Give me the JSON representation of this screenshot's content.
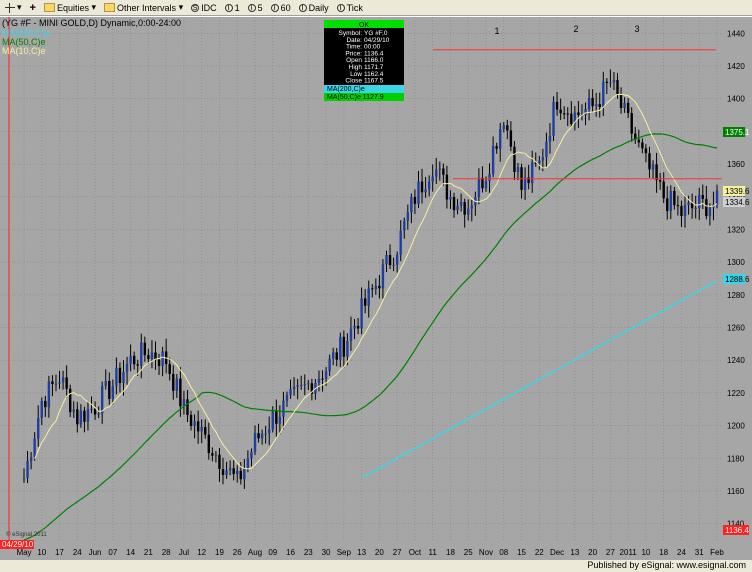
{
  "toolbar": {
    "symbol_menu": "▾",
    "equities": "Equities",
    "other_intervals": "Other Intervals",
    "idc": "IDC",
    "btn_1": "1",
    "btn_5": "5",
    "btn_60": "60",
    "daily": "Daily",
    "tick": "Tick"
  },
  "chart_title": "(YG #F - MINI GOLD,D) Dynamic,0:00-24:00",
  "legend": [
    {
      "label": "MA(200,C)e",
      "color": "#3ad6e8"
    },
    {
      "label": "MA(50,C)e",
      "color": "#008000"
    },
    {
      "label": "MA(10,C)e",
      "color": "#f5f0a0"
    }
  ],
  "data_window": {
    "header": "OK",
    "rows": [
      {
        "label": "Symbol:",
        "value": "YG #F,0"
      },
      {
        "label": "Date:",
        "value": "04/29/10"
      },
      {
        "label": "Time:",
        "value": "00:00"
      },
      {
        "label": "Price:",
        "value": "1136.4"
      },
      {
        "label": "Open",
        "value": "1166.0"
      },
      {
        "label": "High",
        "value": "1171.7"
      },
      {
        "label": "Low",
        "value": "1162.4"
      },
      {
        "label": "Close",
        "value": "1167.5"
      }
    ],
    "ma200": "MA(200,C)e",
    "ma50": "MA(50,C)e 1127.9"
  },
  "price_badges": {
    "ma50": "1375.1",
    "last1": "1339.6",
    "last2": "1334.6",
    "ma200": "1288.6",
    "cursor": "1136.4"
  },
  "cursor_date": "04/29/10",
  "footer": "Published by eSignal: www.esignal.com",
  "watermark": "© eSignal 2011",
  "colors": {
    "background": "#a6a6a6",
    "up_bar": "#1f3f9f",
    "down_bar": "#000000",
    "ma10": "#f5f0a0",
    "ma50": "#008000",
    "ma200": "#3ad6e8",
    "resistance": "#ff3030"
  },
  "chart_data": {
    "type": "ohlc",
    "title": "(YG #F - MINI GOLD,D) Dynamic,0:00-24:00",
    "ylim": [
      1130,
      1450
    ],
    "y_ticks": [
      1140,
      1160,
      1180,
      1200,
      1220,
      1240,
      1260,
      1280,
      1300,
      1320,
      1340,
      1360,
      1380,
      1400,
      1420,
      1440
    ],
    "x_tick_labels": [
      "May",
      "10",
      "17",
      "24",
      "Jun",
      "07",
      "14",
      "21",
      "28",
      "Jul",
      "12",
      "19",
      "26",
      "Aug",
      "09",
      "16",
      "23",
      "30",
      "Sep",
      "13",
      "20",
      "27",
      "Oct",
      "11",
      "18",
      "25",
      "Nov",
      "08",
      "15",
      "22",
      "Dec",
      "13",
      "20",
      "27",
      "2011",
      "10",
      "18",
      "24",
      "31",
      "Feb"
    ],
    "weekly_closes": [
      1168,
      1215,
      1230,
      1205,
      1212,
      1225,
      1240,
      1245,
      1240,
      1210,
      1195,
      1180,
      1165,
      1190,
      1205,
      1215,
      1225,
      1235,
      1250,
      1270,
      1290,
      1310,
      1340,
      1360,
      1340,
      1335,
      1355,
      1390,
      1345,
      1360,
      1400,
      1390,
      1395,
      1410,
      1385,
      1360,
      1340,
      1330,
      1335,
      1336
    ],
    "series": [
      {
        "name": "MA(200,C)e",
        "start_week": 19,
        "start": 1168,
        "end": 1288.6
      },
      {
        "name": "MA(50,C)e",
        "start_week": 0,
        "start": 1130,
        "end": 1375.1
      },
      {
        "name": "MA(10,C)e"
      }
    ],
    "resistance_levels": [
      {
        "value": 1430
      },
      {
        "value": 1351
      }
    ],
    "peak_labels": [
      "1",
      "2",
      "3"
    ],
    "grid": true
  }
}
